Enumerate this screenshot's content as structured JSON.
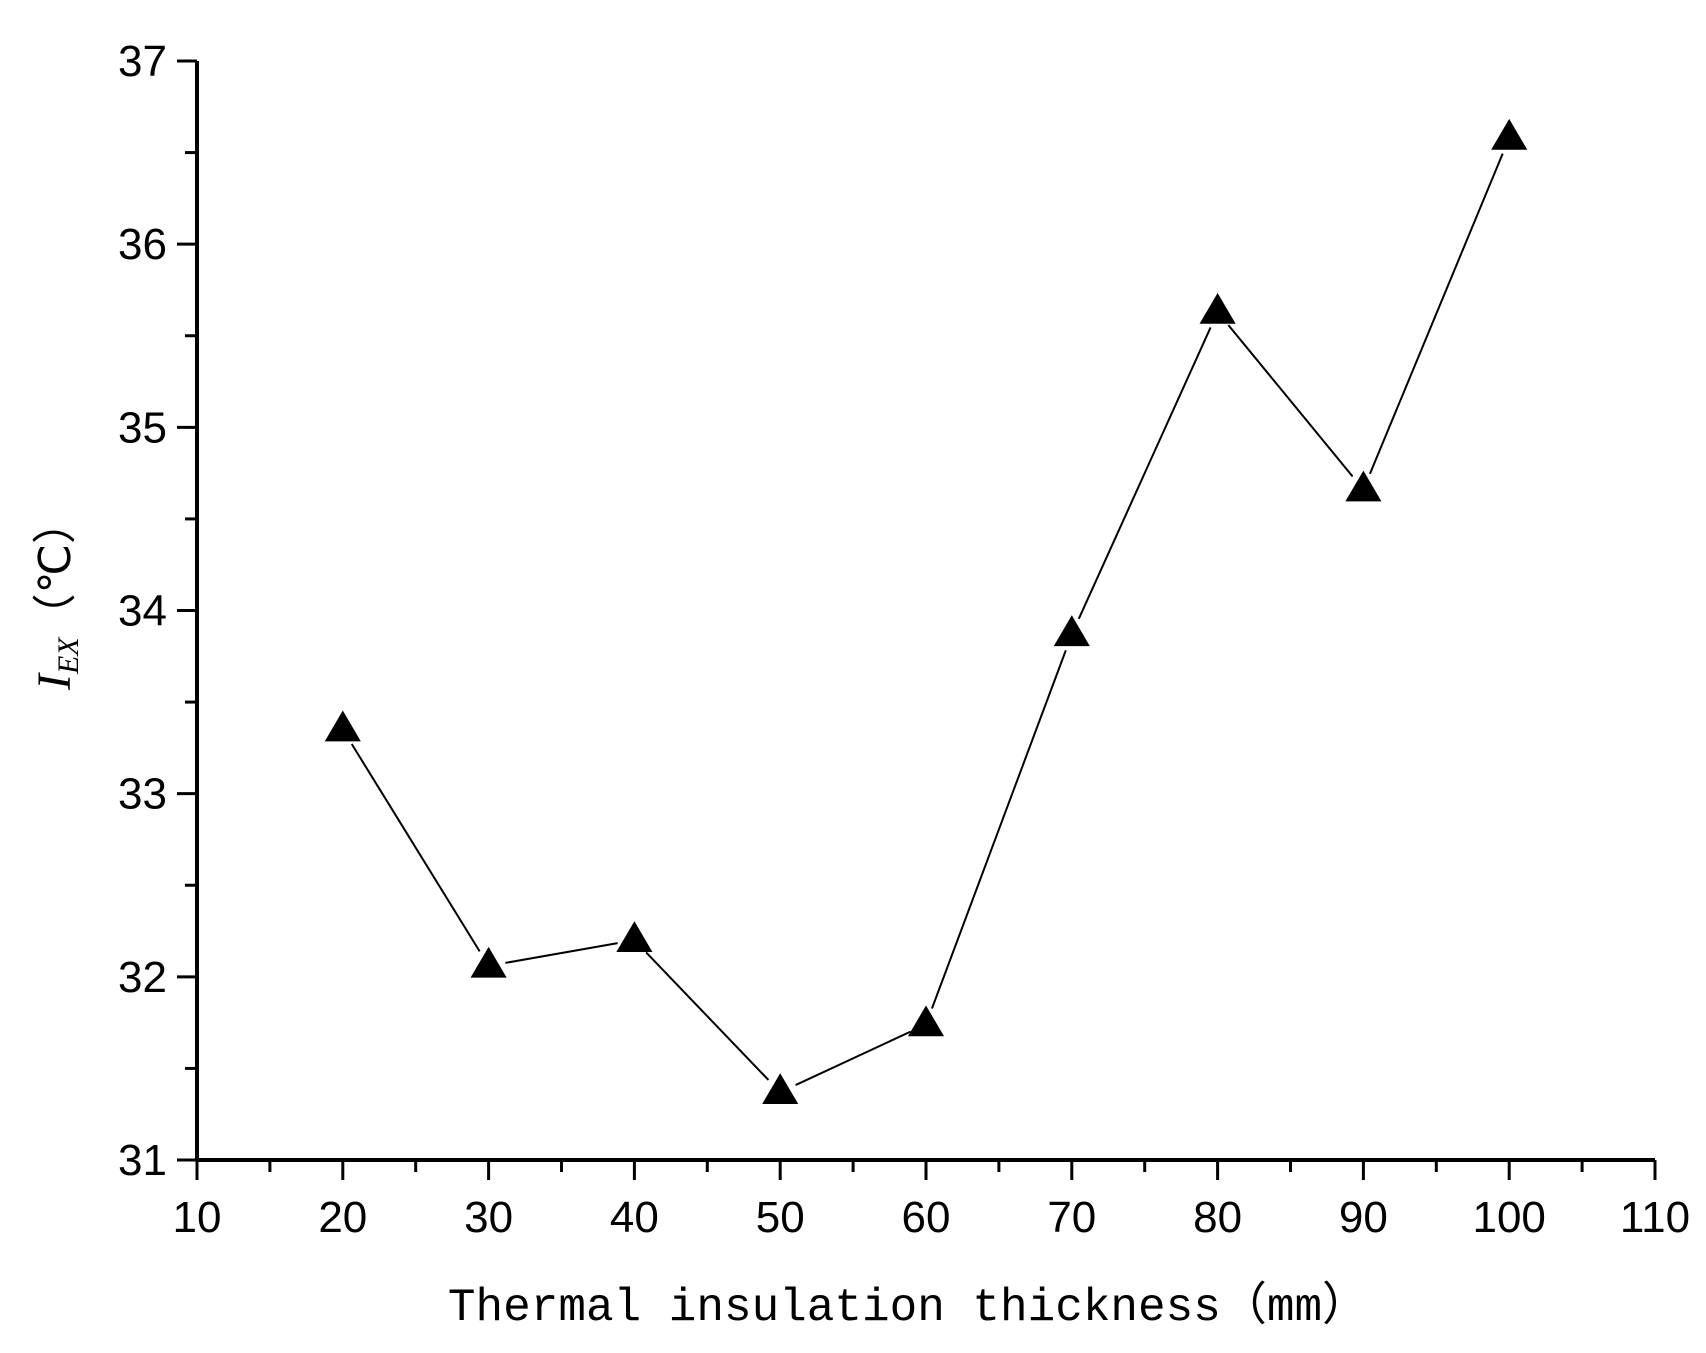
{
  "chart_data": {
    "type": "line",
    "title": "",
    "xlabel": "Thermal insulation thickness（mm）",
    "ylabel": {
      "symbol": "I",
      "subscript": "EX",
      "unit": "（℃）"
    },
    "xlim": [
      10,
      110
    ],
    "ylim": [
      31,
      37
    ],
    "x_ticks": [
      10,
      20,
      30,
      40,
      50,
      60,
      70,
      80,
      90,
      100,
      110
    ],
    "x_tick_labels": [
      "10",
      "20",
      "30",
      "40",
      "50",
      "60",
      "70",
      "80",
      "90",
      "100",
      "110"
    ],
    "x_minor_ticks": [
      15,
      25,
      35,
      45,
      55,
      65,
      75,
      85,
      95,
      105
    ],
    "y_ticks": [
      31,
      32,
      33,
      34,
      35,
      36,
      37
    ],
    "y_tick_labels": [
      "31",
      "32",
      "33",
      "34",
      "35",
      "36",
      "37"
    ],
    "y_minor_ticks": [
      31.5,
      32.5,
      33.5,
      34.5,
      35.5,
      36.5
    ],
    "grid": false,
    "series": [
      {
        "name": "I_EX",
        "marker": "triangle",
        "color": "#000000",
        "x": [
          20,
          30,
          40,
          50,
          60,
          70,
          80,
          90,
          100
        ],
        "y": [
          33.35,
          32.06,
          32.2,
          31.37,
          31.74,
          33.87,
          35.63,
          34.66,
          36.58
        ]
      }
    ]
  }
}
